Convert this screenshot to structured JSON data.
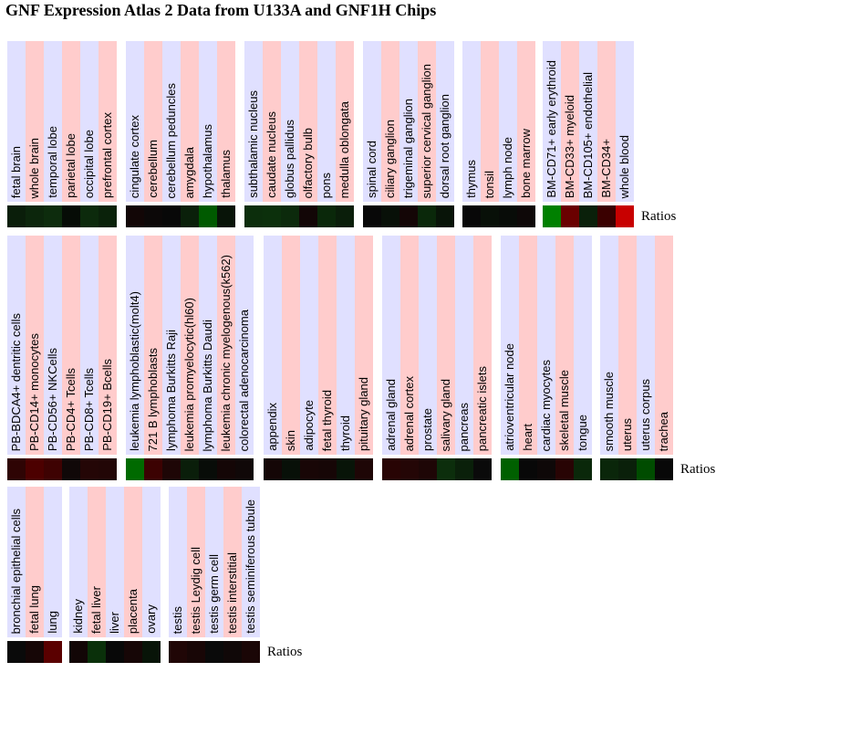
{
  "title": "GNF Expression Atlas 2 Data from U133A and GNF1H Chips",
  "legend_label": "Ratios",
  "chart_data": {
    "type": "heatmap",
    "title": "GNF Expression Atlas 2 Data from U133A and GNF1H Chips",
    "value_label": "Ratios",
    "rows": [
      {
        "groups": [
          {
            "cells": [
              {
                "tissue": "fetal brain",
                "color": "#0a1e0a"
              },
              {
                "tissue": "whole brain",
                "color": "#0c260c"
              },
              {
                "tissue": "temporal lobe",
                "color": "#0d2c0d"
              },
              {
                "tissue": "parietal lobe",
                "color": "#060c06"
              },
              {
                "tissue": "occipital lobe",
                "color": "#0c2a0c"
              },
              {
                "tissue": "prefrontal cortex",
                "color": "#0a220a"
              }
            ]
          },
          {
            "cells": [
              {
                "tissue": "cingulate cortex",
                "color": "#120606"
              },
              {
                "tissue": "cerebellum",
                "color": "#0c0808"
              },
              {
                "tissue": "cerebellum peduncles",
                "color": "#080808"
              },
              {
                "tissue": "amygdala",
                "color": "#0a200a"
              },
              {
                "tissue": "hypothalamus",
                "color": "#005a00"
              },
              {
                "tissue": "thalamus",
                "color": "#081408"
              }
            ]
          },
          {
            "cells": [
              {
                "tissue": "subthalamic nucleus",
                "color": "#0c2e0c"
              },
              {
                "tissue": "caudate nucleus",
                "color": "#0c300c"
              },
              {
                "tissue": "globus pallidus",
                "color": "#0c2a0c"
              },
              {
                "tissue": "olfactory bulb",
                "color": "#120606"
              },
              {
                "tissue": "pons",
                "color": "#0a280a"
              },
              {
                "tissue": "medulla oblongata",
                "color": "#0a1e0a"
              }
            ]
          },
          {
            "cells": [
              {
                "tissue": "spinal cord",
                "color": "#080808"
              },
              {
                "tissue": "ciliary ganglion",
                "color": "#081008"
              },
              {
                "tissue": "trigeminal ganglion",
                "color": "#140606"
              },
              {
                "tissue": "superior cervical ganglion",
                "color": "#0a280a"
              },
              {
                "tissue": "dorsal root ganglion",
                "color": "#081408"
              }
            ]
          },
          {
            "cells": [
              {
                "tissue": "thymus",
                "color": "#080808"
              },
              {
                "tissue": "tonsil",
                "color": "#081008"
              },
              {
                "tissue": "lymph node",
                "color": "#080c08"
              },
              {
                "tissue": "bone marrow",
                "color": "#0e0808"
              }
            ]
          },
          {
            "cells": [
              {
                "tissue": "BM-CD71+ early erythroid",
                "color": "#008000"
              },
              {
                "tissue": "BM-CD33+ myeloid",
                "color": "#6a0000"
              },
              {
                "tissue": "BM-CD105+ endothelial",
                "color": "#0a200a"
              },
              {
                "tissue": "BM-CD34+",
                "color": "#3a0000"
              },
              {
                "tissue": "whole blood",
                "color": "#c80000"
              }
            ]
          }
        ]
      },
      {
        "groups": [
          {
            "cells": [
              {
                "tissue": "PB-BDCA4+ dentritic cells",
                "color": "#2e0404"
              },
              {
                "tissue": "PB-CD14+ monocytes",
                "color": "#4c0000"
              },
              {
                "tissue": "PB-CD56+ NKCells",
                "color": "#3e0202"
              },
              {
                "tissue": "PB-CD4+ Tcells",
                "color": "#100808"
              },
              {
                "tissue": "PB-CD8+ Tcells",
                "color": "#240606"
              },
              {
                "tissue": "PB-CD19+ Bcells",
                "color": "#220606"
              }
            ]
          },
          {
            "cells": [
              {
                "tissue": "leukemia lymphoblastic(molt4)",
                "color": "#006a00"
              },
              {
                "tissue": "721 B lymphoblasts",
                "color": "#3c0202"
              },
              {
                "tissue": "lymphoma Burkitts Raji",
                "color": "#1e0606"
              },
              {
                "tissue": "leukemia promyelocytic(hl60)",
                "color": "#0a1e0a"
              },
              {
                "tissue": "lymphoma Burkitts Daudi",
                "color": "#080c08"
              },
              {
                "tissue": "leukemia chronic myelogenous(k562)",
                "color": "#140606"
              },
              {
                "tissue": "colorectal adenocarcinoma",
                "color": "#100808"
              }
            ]
          },
          {
            "cells": [
              {
                "tissue": "appendix",
                "color": "#140606"
              },
              {
                "tissue": "skin",
                "color": "#081008"
              },
              {
                "tissue": "adipocyte",
                "color": "#180606"
              },
              {
                "tissue": "fetal thyroid",
                "color": "#160606"
              },
              {
                "tissue": "thyroid",
                "color": "#081408"
              },
              {
                "tissue": "pituitary gland",
                "color": "#1e0606"
              }
            ]
          },
          {
            "cells": [
              {
                "tissue": "adrenal gland",
                "color": "#280404"
              },
              {
                "tissue": "adrenal cortex",
                "color": "#240606"
              },
              {
                "tissue": "prostate",
                "color": "#1e0606"
              },
              {
                "tissue": "salivary gland",
                "color": "#0c2e0c"
              },
              {
                "tissue": "pancreas",
                "color": "#0a200a"
              },
              {
                "tissue": "pancreatic islets",
                "color": "#0a0a0a"
              }
            ]
          },
          {
            "cells": [
              {
                "tissue": "atrioventricular node",
                "color": "#006000"
              },
              {
                "tissue": "heart",
                "color": "#080808"
              },
              {
                "tissue": "cardiac myocytes",
                "color": "#0e0808"
              },
              {
                "tissue": "skeletal muscle",
                "color": "#280404"
              },
              {
                "tissue": "tongue",
                "color": "#0a280a"
              }
            ]
          },
          {
            "cells": [
              {
                "tissue": "smooth muscle",
                "color": "#0a260a"
              },
              {
                "tissue": "uterus",
                "color": "#0a200a"
              },
              {
                "tissue": "uterus corpus",
                "color": "#004c00"
              },
              {
                "tissue": "trachea",
                "color": "#080808"
              }
            ]
          }
        ]
      },
      {
        "groups": [
          {
            "cells": [
              {
                "tissue": "bronchial epithelial cells",
                "color": "#0a0a0a"
              },
              {
                "tissue": "fetal lung",
                "color": "#160606"
              },
              {
                "tissue": "lung",
                "color": "#5a0000"
              }
            ]
          },
          {
            "cells": [
              {
                "tissue": "kidney",
                "color": "#120606"
              },
              {
                "tissue": "fetal liver",
                "color": "#0a300a"
              },
              {
                "tissue": "liver",
                "color": "#080808"
              },
              {
                "tissue": "placenta",
                "color": "#160606"
              },
              {
                "tissue": "ovary",
                "color": "#081408"
              }
            ]
          },
          {
            "cells": [
              {
                "tissue": "testis",
                "color": "#200606"
              },
              {
                "tissue": "testis Leydig cell",
                "color": "#180606"
              },
              {
                "tissue": "testis germ cell",
                "color": "#0a0a0a"
              },
              {
                "tissue": "testis interstitial",
                "color": "#100808"
              },
              {
                "tissue": "testis seminiferous tubule",
                "color": "#1a0606"
              }
            ]
          }
        ]
      }
    ]
  }
}
